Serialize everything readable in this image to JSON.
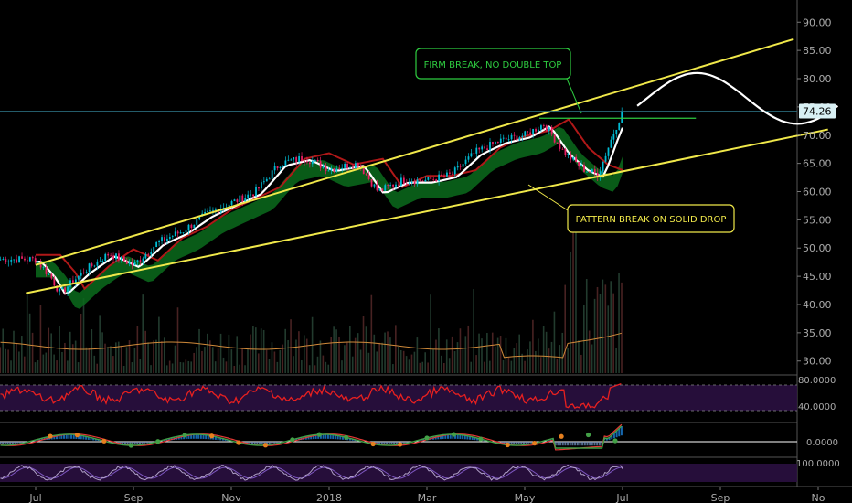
{
  "chart_data": {
    "type": "candlestick",
    "price_axis": {
      "ticks": [
        "90.00",
        "85.00",
        "80.00",
        "75.00",
        "70.00",
        "65.00",
        "60.00",
        "55.00",
        "50.00",
        "45.00",
        "40.00",
        "35.00",
        "30.00"
      ],
      "range": [
        28.5,
        91.5
      ],
      "last_price_label": "74.26",
      "last_price": 74.26
    },
    "time_axis": {
      "labels": [
        "Jul",
        "Sep",
        "Nov",
        "2018",
        "Mar",
        "May",
        "Jul",
        "Sep",
        "No"
      ],
      "months": [
        0,
        2,
        4,
        6,
        8,
        10,
        12,
        14,
        16
      ]
    },
    "price_path": [
      [
        0,
        48
      ],
      [
        0.3,
        45
      ],
      [
        0.5,
        42
      ],
      [
        1,
        46
      ],
      [
        1.5,
        49
      ],
      [
        2,
        47
      ],
      [
        2.5,
        51
      ],
      [
        3,
        53
      ],
      [
        3.5,
        56
      ],
      [
        4,
        58
      ],
      [
        4.5,
        60
      ],
      [
        5,
        65
      ],
      [
        5.5,
        66
      ],
      [
        6,
        64
      ],
      [
        6.6,
        65
      ],
      [
        7,
        60
      ],
      [
        7.5,
        62
      ],
      [
        8,
        62
      ],
      [
        8.5,
        63
      ],
      [
        9,
        67
      ],
      [
        9.5,
        69
      ],
      [
        10,
        70
      ],
      [
        10.4,
        72
      ],
      [
        10.8,
        67
      ],
      [
        11.2,
        64
      ],
      [
        11.5,
        63
      ],
      [
        11.8,
        70
      ],
      [
        12,
        74.26
      ]
    ],
    "projection": {
      "start_month": 12.3,
      "end_month": 16.4,
      "high": 81,
      "low": 72
    },
    "trendlines": {
      "upper": [
        [
          0,
          47
        ],
        [
          15.5,
          87
        ]
      ],
      "lower": [
        [
          -0.2,
          42
        ],
        [
          16.2,
          71
        ]
      ],
      "firm_break_level": 73,
      "firm_break_span": [
        10.3,
        13.5
      ]
    },
    "annotations": {
      "firm_break": "FIRM BREAK, NO DOUBLE TOP",
      "pattern_break": "PATTERN BREAK ON SOLID DROP"
    },
    "indicators": {
      "rsi_ticks": [
        "80.0000",
        "40.0000"
      ],
      "macd_tick": "0.0000",
      "stoch_tick": "100.0000"
    },
    "colors": {
      "trendline": "#f0e84a",
      "annotation_green": "#2ecc40",
      "annotation_yellow": "#f0e84a",
      "rsi": "#e82020",
      "last_price_bg": "#d8f0f4",
      "candle_up": "#00bcd4",
      "candle_down": "#e91e63"
    }
  }
}
